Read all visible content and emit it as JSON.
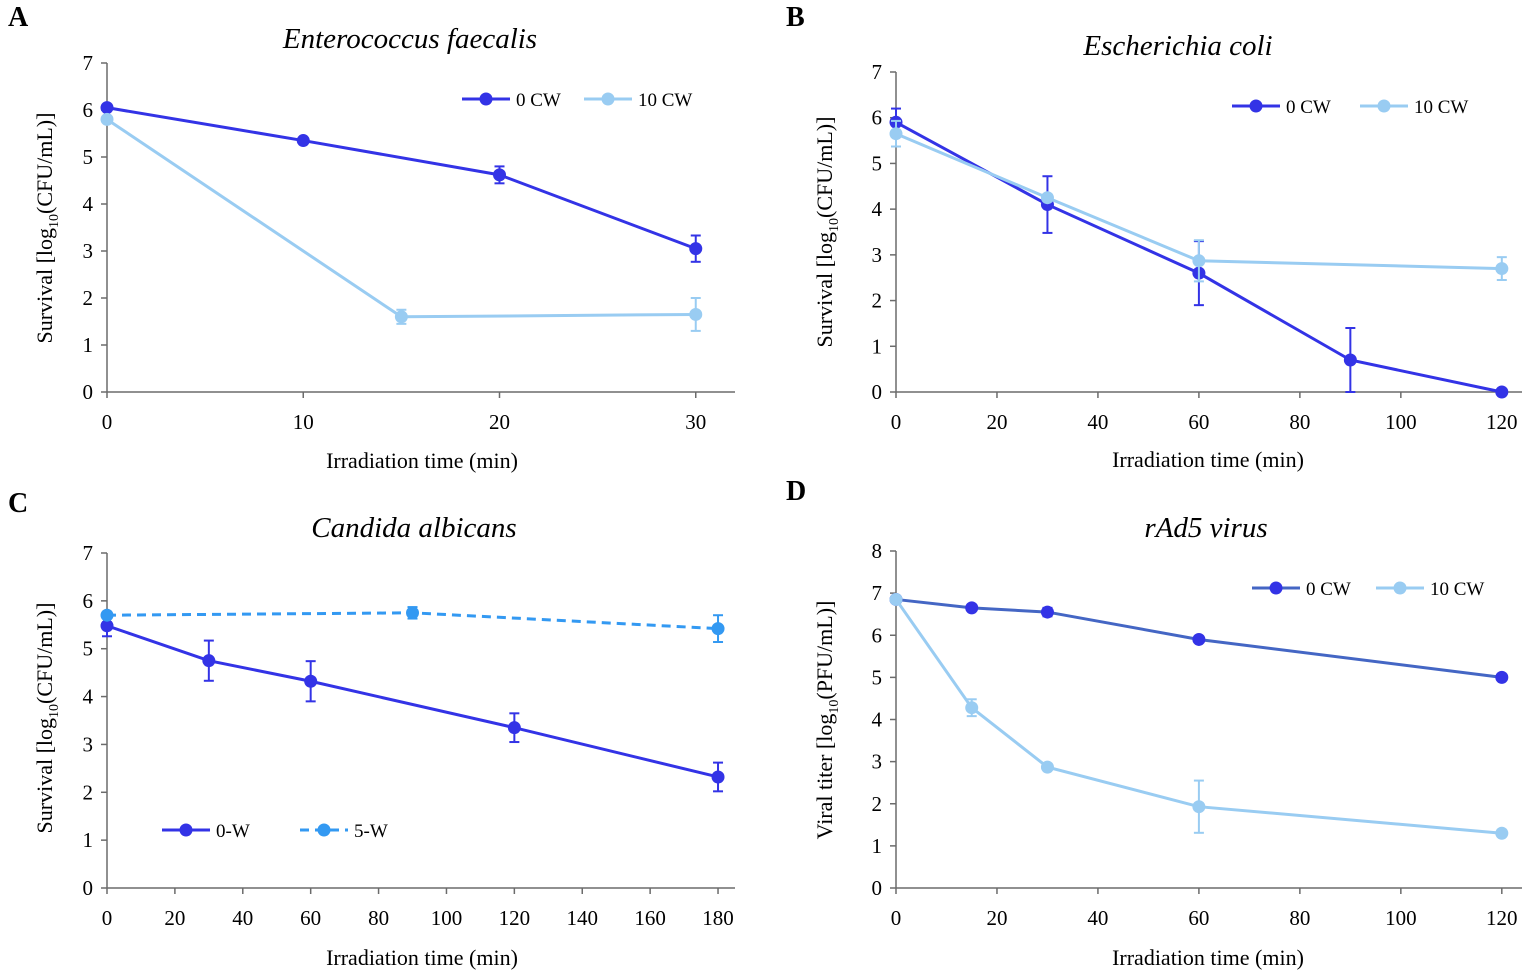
{
  "figure": {
    "panels": [
      "A",
      "B",
      "C",
      "D"
    ]
  },
  "chart_data": [
    {
      "panel": "A",
      "type": "line",
      "title": "Enterococcus faecalis",
      "xlabel": "Irradiation time (min)",
      "ylabel": {
        "pre": "Survival [log",
        "sub": "10",
        "post": "(CFU/mL)]"
      },
      "xlim": [
        0,
        32
      ],
      "ylim": [
        0,
        7
      ],
      "xticks": [
        0,
        10,
        20,
        30
      ],
      "yticks": [
        0,
        1,
        2,
        3,
        4,
        5,
        6,
        7
      ],
      "grid": false,
      "legend_position": "top-right",
      "series": [
        {
          "name": "0 CW",
          "color": "#3333e6",
          "dashed": false,
          "x": [
            0,
            10,
            20,
            30
          ],
          "y": [
            6.05,
            5.35,
            4.62,
            3.05
          ],
          "err": [
            0,
            0,
            0.18,
            0.28
          ]
        },
        {
          "name": "10 CW",
          "color": "#99ccf2",
          "dashed": false,
          "x": [
            0,
            15,
            30
          ],
          "y": [
            5.8,
            1.6,
            1.65
          ],
          "err": [
            0,
            0.15,
            0.35
          ]
        }
      ]
    },
    {
      "panel": "B",
      "type": "line",
      "title": "Escherichia coli",
      "xlabel": "Irradiation time (min)",
      "ylabel": {
        "pre": "Survival [log",
        "sub": "10",
        "post": "(CFU/mL)]"
      },
      "xlim": [
        0,
        124
      ],
      "ylim": [
        0,
        7
      ],
      "xticks": [
        0,
        20,
        40,
        60,
        80,
        100,
        120
      ],
      "yticks": [
        0,
        1,
        2,
        3,
        4,
        5,
        6,
        7
      ],
      "grid": false,
      "legend_position": "top-right",
      "series": [
        {
          "name": "0 CW",
          "color": "#3333e6",
          "dashed": false,
          "x": [
            0,
            30,
            60,
            90,
            120
          ],
          "y": [
            5.9,
            4.1,
            2.6,
            0.7,
            0.0
          ],
          "err": [
            0.3,
            0.62,
            0.7,
            0.7,
            0
          ]
        },
        {
          "name": "10 CW",
          "color": "#99ccf2",
          "dashed": false,
          "x": [
            0,
            30,
            60,
            120
          ],
          "y": [
            5.65,
            4.25,
            2.87,
            2.7
          ],
          "err": [
            0.28,
            0,
            0.45,
            0.25
          ]
        }
      ]
    },
    {
      "panel": "C",
      "type": "line",
      "title": "Candida albicans",
      "xlabel": "Irradiation time (min)",
      "ylabel": {
        "pre": "Survival [log",
        "sub": "10",
        "post": "(CFU/mL)]"
      },
      "xlim": [
        0,
        185
      ],
      "ylim": [
        0,
        7
      ],
      "xticks": [
        0,
        20,
        40,
        60,
        80,
        100,
        120,
        140,
        160,
        180
      ],
      "yticks": [
        0,
        1,
        2,
        3,
        4,
        5,
        6,
        7
      ],
      "grid": false,
      "legend_position": "bottom-left",
      "series": [
        {
          "name": "0-W",
          "color": "#3333e6",
          "dashed": false,
          "x": [
            0,
            30,
            60,
            120,
            180
          ],
          "y": [
            5.48,
            4.75,
            4.32,
            3.35,
            2.32
          ],
          "err": [
            0.22,
            0.42,
            0.42,
            0.3,
            0.3
          ]
        },
        {
          "name": "5-W",
          "color": "#3399f2",
          "dashed": true,
          "x": [
            0,
            90,
            180
          ],
          "y": [
            5.7,
            5.75,
            5.42
          ],
          "err": [
            0,
            0.12,
            0.28
          ]
        }
      ]
    },
    {
      "panel": "D",
      "type": "line",
      "title": "rAd5 virus",
      "xlabel": "Irradiation time (min)",
      "ylabel": {
        "pre": "Viral titer [log",
        "sub": "10",
        "post": "(PFU/mL)]"
      },
      "xlim": [
        0,
        124
      ],
      "ylim": [
        0,
        8
      ],
      "xticks": [
        0,
        20,
        40,
        60,
        80,
        100,
        120
      ],
      "yticks": [
        0,
        1,
        2,
        3,
        4,
        5,
        6,
        7,
        8
      ],
      "grid": false,
      "legend_position": "top-right",
      "series": [
        {
          "name": "0 CW",
          "color": "#3333e6",
          "line_color": "#4466c4",
          "dashed": false,
          "x": [
            0,
            15,
            30,
            60,
            120
          ],
          "y": [
            6.85,
            6.65,
            6.55,
            5.9,
            5.0
          ],
          "err": [
            0,
            0,
            0.1,
            0,
            0
          ]
        },
        {
          "name": "10 CW",
          "color": "#99ccf2",
          "dashed": false,
          "x": [
            0,
            15,
            30,
            60,
            120
          ],
          "y": [
            6.85,
            4.28,
            2.87,
            1.93,
            1.3
          ],
          "err": [
            0,
            0.2,
            0,
            0.62,
            0
          ]
        }
      ]
    }
  ]
}
